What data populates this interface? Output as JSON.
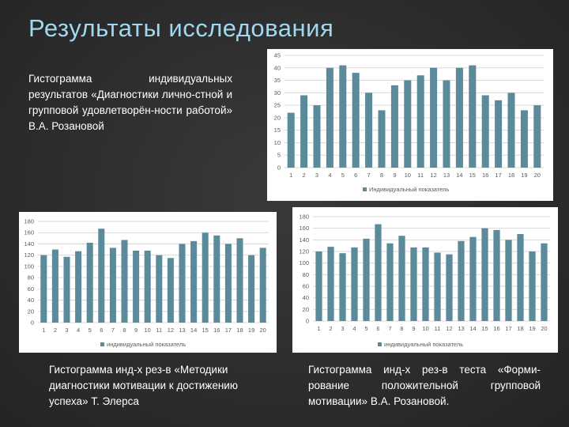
{
  "slide": {
    "title": "Результаты исследования",
    "desc1": "Гистограмма индивидуальных результатов «Диагностики лично-стной и групповой удовлетворён-ности работой» В.А. Розановой",
    "desc2": "Гистограмма инд-х рез-в «Методики диагностики мотивации к достижению успеха» Т. Элерса",
    "desc3": "Гистограмма инд-х рез-в теста «Форми-рование положительной групповой мотивации» В.А. Розановой."
  },
  "colors": {
    "bar": "#5b8a9b",
    "grid": "#d9d9d9",
    "title": "#9fd8f0",
    "text": "#ffffff"
  },
  "chart_data": [
    {
      "type": "bar",
      "categories": [
        "1",
        "2",
        "3",
        "4",
        "5",
        "6",
        "7",
        "8",
        "9",
        "10",
        "11",
        "12",
        "13",
        "14",
        "15",
        "16",
        "17",
        "18",
        "19",
        "20"
      ],
      "series": [
        {
          "name": "Индивидуальный показатель",
          "values": [
            22,
            29,
            25,
            40,
            41,
            38,
            30,
            23,
            33,
            35,
            37,
            40,
            35,
            40,
            41,
            29,
            27,
            30,
            23,
            25
          ]
        }
      ],
      "yticks": [
        "0",
        "5",
        "10",
        "15",
        "20",
        "25",
        "30",
        "35",
        "40",
        "45"
      ],
      "ylim": [
        0,
        45
      ],
      "legend": "bottom",
      "grid": true
    },
    {
      "type": "bar",
      "categories": [
        "1",
        "2",
        "3",
        "4",
        "5",
        "6",
        "7",
        "8",
        "9",
        "10",
        "11",
        "12",
        "13",
        "14",
        "15",
        "16",
        "17",
        "18",
        "19",
        "20"
      ],
      "series": [
        {
          "name": "индивидуальный показатель",
          "values": [
            120,
            130,
            117,
            127,
            142,
            167,
            133,
            147,
            128,
            128,
            120,
            115,
            140,
            145,
            160,
            155,
            140,
            150,
            120,
            133
          ]
        }
      ],
      "yticks": [
        "0",
        "20",
        "40",
        "60",
        "80",
        "100",
        "120",
        "140",
        "160",
        "180"
      ],
      "ylim": [
        0,
        180
      ],
      "legend": "bottom",
      "grid": true
    },
    {
      "type": "bar",
      "categories": [
        "1",
        "2",
        "3",
        "4",
        "5",
        "6",
        "7",
        "8",
        "9",
        "10",
        "11",
        "12",
        "13",
        "14",
        "15",
        "16",
        "17",
        "18",
        "19",
        "20"
      ],
      "series": [
        {
          "name": "индивидуальный показатель",
          "values": [
            120,
            128,
            117,
            127,
            142,
            167,
            134,
            147,
            127,
            127,
            118,
            115,
            138,
            145,
            160,
            157,
            140,
            150,
            120,
            134
          ]
        }
      ],
      "yticks": [
        "0",
        "20",
        "40",
        "60",
        "80",
        "100",
        "120",
        "140",
        "160",
        "180"
      ],
      "ylim": [
        0,
        180
      ],
      "legend": "bottom",
      "grid": true
    }
  ]
}
